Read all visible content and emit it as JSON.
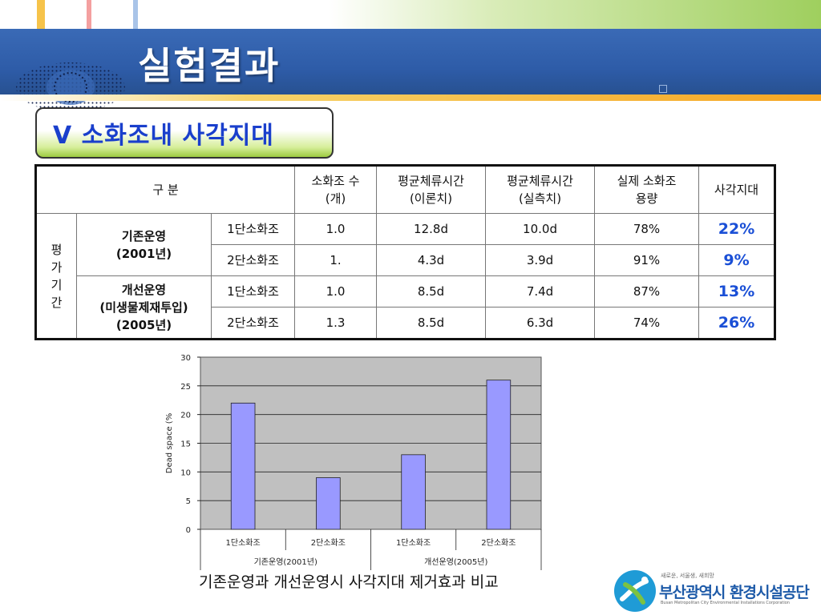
{
  "header": {
    "title": "실험결과"
  },
  "section": {
    "label": "V  소화조내 사각지대"
  },
  "table": {
    "headers": {
      "category": "구  분",
      "count": "소화조 수\n(개)",
      "hrt_theory": "평균체류시간\n(이론치)",
      "hrt_measured": "평균체류시간\n(실측치)",
      "actual_capacity": "실제 소화조\n용량",
      "dead_space": "사각지대"
    },
    "period_label": "평\n가\n기\n간",
    "groups": [
      {
        "name": "기존운영\n(2001년)",
        "rows": [
          {
            "tank": "1단소화조",
            "count": "1.0",
            "hrt_theory": "12.8d",
            "hrt_measured": "10.0d",
            "capacity": "78%",
            "dead": "22%"
          },
          {
            "tank": "2단소화조",
            "count": "1.",
            "hrt_theory": "4.3d",
            "hrt_measured": "3.9d",
            "capacity": "91%",
            "dead": "9%"
          }
        ]
      },
      {
        "name": "개선운영\n(미생물제재투입)\n(2005년)",
        "rows": [
          {
            "tank": "1단소화조",
            "count": "1.0",
            "hrt_theory": "8.5d",
            "hrt_measured": "7.4d",
            "capacity": "87%",
            "dead": "13%"
          },
          {
            "tank": "2단소화조",
            "count": "1.3",
            "hrt_theory": "8.5d",
            "hrt_measured": "6.3d",
            "capacity": "74%",
            "dead": "26%"
          }
        ]
      }
    ]
  },
  "chart_data": {
    "type": "bar",
    "categories": [
      "1단소화조",
      "2단소화조",
      "1단소화조",
      "2단소화조"
    ],
    "groups": [
      {
        "label": "기존운영(2001년)",
        "span": [
          0,
          1
        ]
      },
      {
        "label": "개선운영(2005년)",
        "span": [
          2,
          3
        ]
      }
    ],
    "values": [
      22,
      9,
      13,
      26
    ],
    "title": "",
    "xlabel": "",
    "ylabel": "Dead space (%",
    "ylim": [
      0,
      30
    ],
    "yticks": [
      0,
      5,
      10,
      15,
      20,
      25,
      30
    ],
    "grid": true,
    "legend": "none",
    "colors": {
      "bar": "#9999ff",
      "plot_bg": "#c0c0c0",
      "bar_edge": "#222222"
    }
  },
  "caption": "기존운영과 개선운영시 사각지대 제거효과 비교",
  "logo": {
    "name": "부산광역시 환경시설공단",
    "slogan": "새로운, 서울생, 새희망",
    "english": "Busan Metropolitan City Environmental Installations Corporation"
  }
}
